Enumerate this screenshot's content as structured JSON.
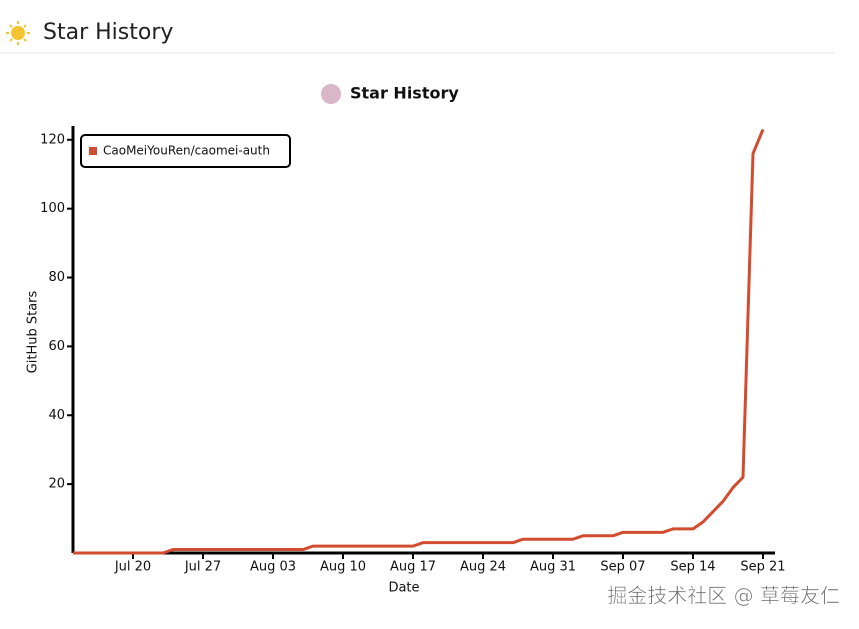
{
  "header": {
    "title": "Star History"
  },
  "chart_data": {
    "type": "line",
    "title": "Star History",
    "x_label": "Date",
    "y_label": "GitHub Stars",
    "x": [
      "Jul 14",
      "Jul 15",
      "Jul 16",
      "Jul 17",
      "Jul 18",
      "Jul 19",
      "Jul 20",
      "Jul 21",
      "Jul 22",
      "Jul 23",
      "Jul 24",
      "Jul 25",
      "Jul 26",
      "Jul 27",
      "Jul 28",
      "Jul 29",
      "Jul 30",
      "Jul 31",
      "Aug 01",
      "Aug 02",
      "Aug 03",
      "Aug 04",
      "Aug 05",
      "Aug 06",
      "Aug 07",
      "Aug 08",
      "Aug 09",
      "Aug 10",
      "Aug 11",
      "Aug 12",
      "Aug 13",
      "Aug 14",
      "Aug 15",
      "Aug 16",
      "Aug 17",
      "Aug 18",
      "Aug 19",
      "Aug 20",
      "Aug 21",
      "Aug 22",
      "Aug 23",
      "Aug 24",
      "Aug 25",
      "Aug 26",
      "Aug 27",
      "Aug 28",
      "Aug 29",
      "Aug 30",
      "Aug 31",
      "Sep 01",
      "Sep 02",
      "Sep 03",
      "Sep 04",
      "Sep 05",
      "Sep 06",
      "Sep 07",
      "Sep 08",
      "Sep 09",
      "Sep 10",
      "Sep 11",
      "Sep 12",
      "Sep 13",
      "Sep 14",
      "Sep 15",
      "Sep 16",
      "Sep 17",
      "Sep 18",
      "Sep 19",
      "Sep 20",
      "Sep 21"
    ],
    "series": [
      {
        "name": "CaoMeiYouRen/caomei-auth",
        "color": "#d24c30",
        "values": [
          0,
          0,
          0,
          0,
          0,
          0,
          0,
          0,
          0,
          0,
          1,
          1,
          1,
          1,
          1,
          1,
          1,
          1,
          1,
          1,
          1,
          1,
          1,
          1,
          2,
          2,
          2,
          2,
          2,
          2,
          2,
          2,
          2,
          2,
          2,
          3,
          3,
          3,
          3,
          3,
          3,
          3,
          3,
          3,
          3,
          4,
          4,
          4,
          4,
          4,
          4,
          5,
          5,
          5,
          5,
          6,
          6,
          6,
          6,
          6,
          7,
          7,
          7,
          9,
          12,
          15,
          19,
          22,
          116,
          123
        ]
      }
    ],
    "xticks": [
      "Jul 20",
      "Jul 27",
      "Aug 03",
      "Aug 10",
      "Aug 17",
      "Aug 24",
      "Aug 31",
      "Sep 07",
      "Sep 14",
      "Sep 21"
    ],
    "ylim": [
      0,
      124
    ],
    "yticks": [
      20,
      40,
      60,
      80,
      100,
      120
    ],
    "legend": "top-left"
  },
  "watermark": "掘金技术社区 @ 草莓友仁"
}
